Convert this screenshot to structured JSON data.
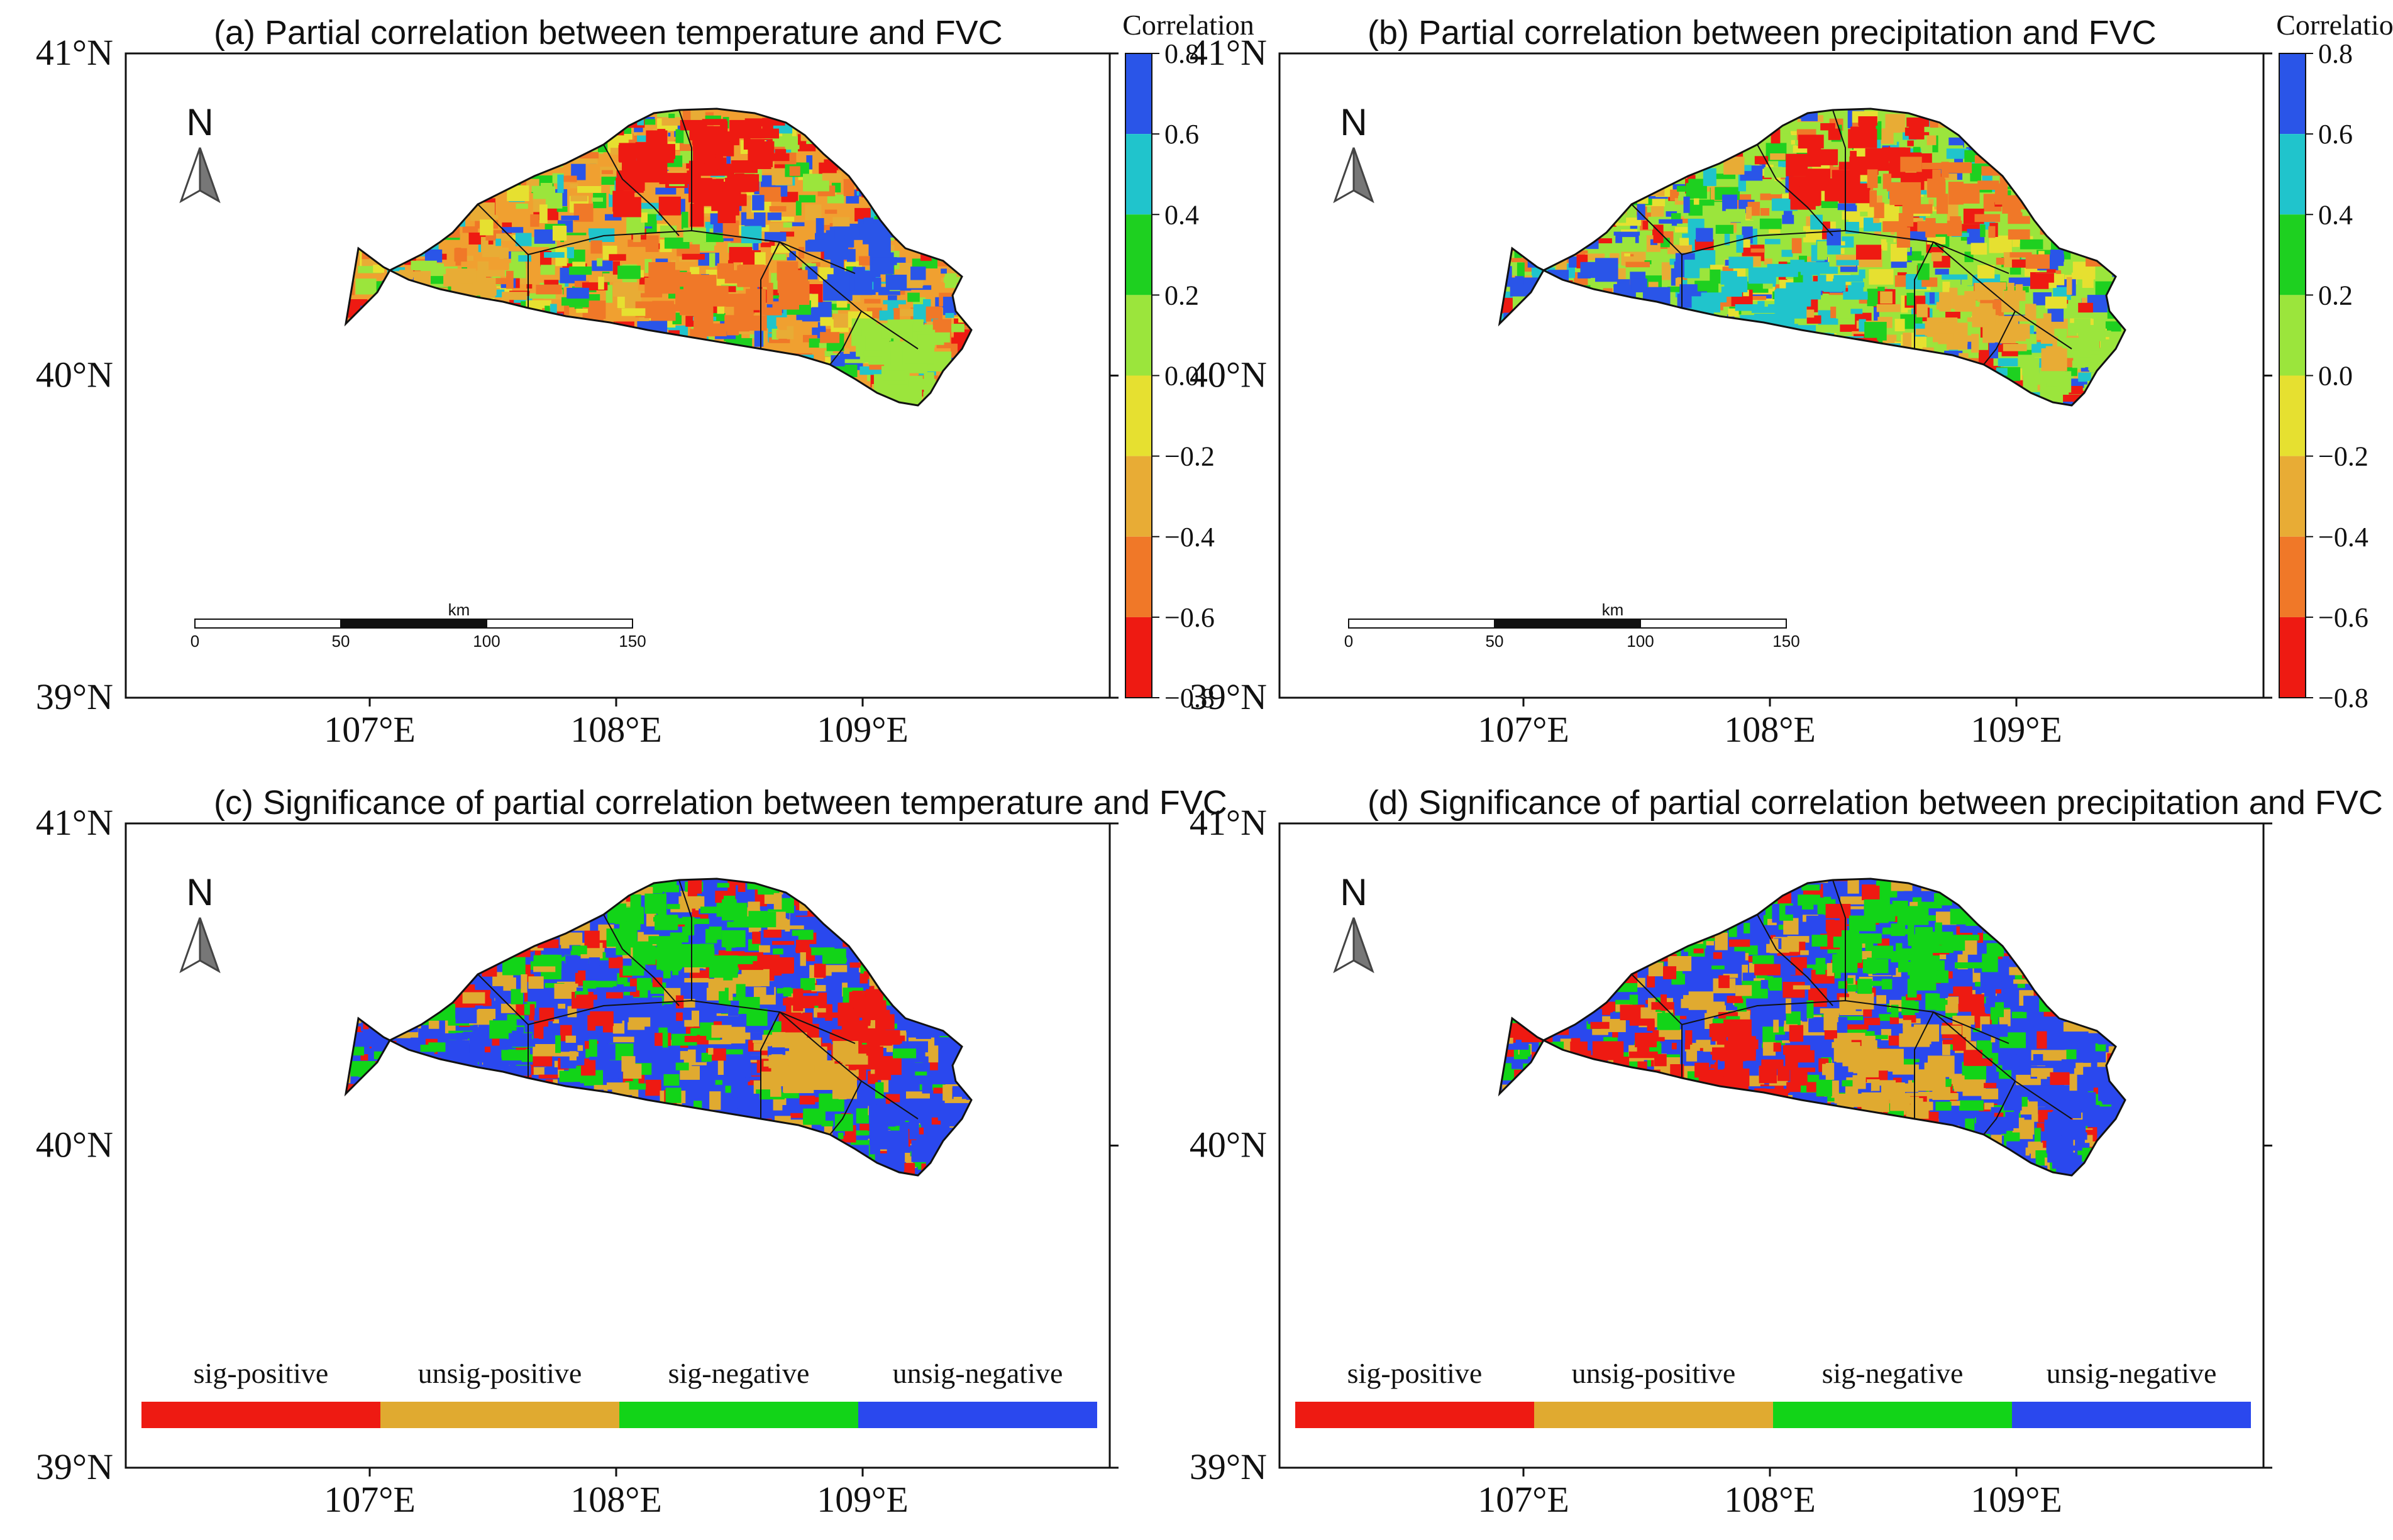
{
  "figure": {
    "panels": [
      {
        "id": "a",
        "title": "(a) Partial correlation between temperature and  FVC",
        "kind": "correlation",
        "dominant_color": "#f0a030",
        "legend": {
          "title": "Correlation",
          "ticks": [
            "0.8",
            "0.6",
            "0.4",
            "0.2",
            "0.0",
            "−0.2",
            "−0.4",
            "−0.6",
            "−0.8"
          ],
          "colors": [
            "#2a55e8",
            "#20c4cc",
            "#1ed020",
            "#9be53c",
            "#e6e030",
            "#e8ac35",
            "#f07828",
            "#ee1a12"
          ]
        },
        "scalebar": {
          "unit": "km",
          "labels": [
            "0",
            "50",
            "100",
            "150"
          ]
        },
        "north": "N",
        "x_ticks": [
          "107°E",
          "108°E",
          "109°E"
        ],
        "y_ticks": [
          "41°N",
          "40°N",
          "39°N"
        ]
      },
      {
        "id": "b",
        "title": "(b) Partial correlation between precipitation and  FVC",
        "kind": "correlation",
        "dominant_color": "#9be53c",
        "legend": {
          "title": "Correlation",
          "ticks": [
            "0.8",
            "0.6",
            "0.4",
            "0.2",
            "0.0",
            "−0.2",
            "−0.4",
            "−0.6",
            "−0.8"
          ],
          "colors": [
            "#2a55e8",
            "#20c4cc",
            "#1ed020",
            "#9be53c",
            "#e6e030",
            "#e8ac35",
            "#f07828",
            "#ee1a12"
          ]
        },
        "scalebar": {
          "unit": "km",
          "labels": [
            "0",
            "50",
            "100",
            "150"
          ]
        },
        "north": "N",
        "x_ticks": [
          "107°E",
          "108°E",
          "109°E"
        ],
        "y_ticks": [
          "41°N",
          "40°N",
          "39°N"
        ]
      },
      {
        "id": "c",
        "title": "(c) Significance of partial correlation between temperature and  FVC",
        "kind": "significance",
        "dominant_color": "#2a48ee",
        "legend": {
          "labels": [
            "sig-positive",
            "unsig-positive",
            "sig-negative",
            "unsig-negative"
          ],
          "colors": [
            "#ee1a12",
            "#e0aa30",
            "#12d418",
            "#2a48ee"
          ]
        },
        "north": "N",
        "x_ticks": [
          "107°E",
          "108°E",
          "109°E"
        ],
        "y_ticks": [
          "41°N",
          "40°N",
          "39°N"
        ]
      },
      {
        "id": "d",
        "title": "(d) Significance of partial correlation between precipitation and  FVC",
        "kind": "significance",
        "dominant_color": "#2a48ee",
        "legend": {
          "labels": [
            "sig-positive",
            "unsig-positive",
            "sig-negative",
            "unsig-negative"
          ],
          "colors": [
            "#ee1a12",
            "#e0aa30",
            "#12d418",
            "#2a48ee"
          ]
        },
        "north": "N",
        "x_ticks": [
          "107°E",
          "108°E",
          "109°E"
        ],
        "y_ticks": [
          "41°N",
          "40°N",
          "39°N"
        ]
      }
    ]
  }
}
